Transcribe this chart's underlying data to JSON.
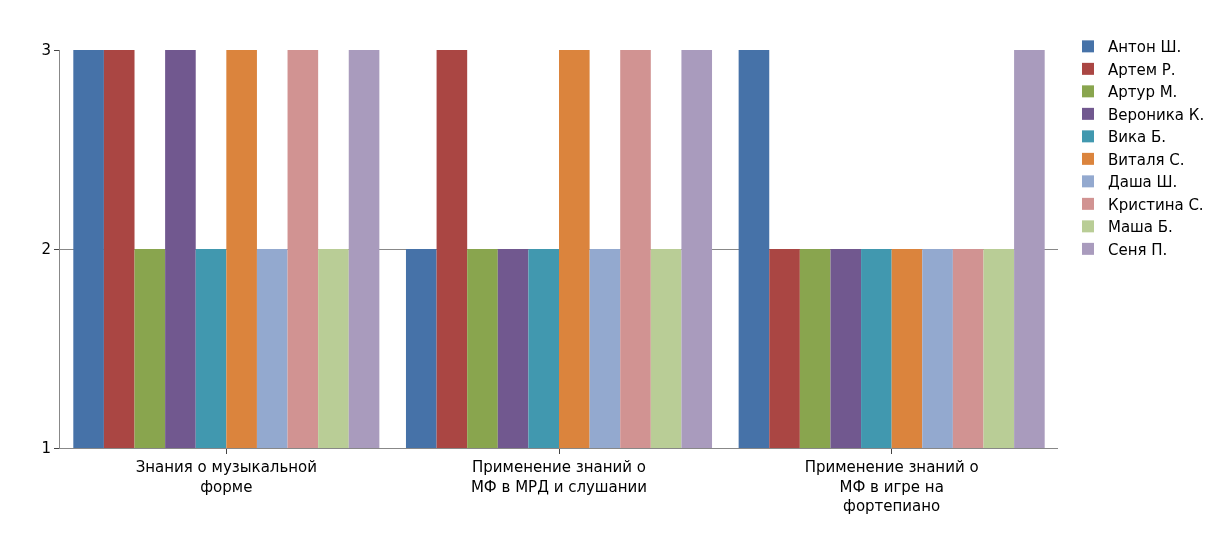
{
  "chart_data": {
    "type": "bar",
    "categories": [
      "Знания о музыкальной форме",
      "Применение знаний о МФ в МРД и слушании",
      "Применение знаний о МФ в игре на фортепиано"
    ],
    "series": [
      {
        "name": "Антон Ш.",
        "color": "#4672a8",
        "values": [
          3,
          2,
          3
        ]
      },
      {
        "name": "Артем Р.",
        "color": "#aa4643",
        "values": [
          3,
          3,
          2
        ]
      },
      {
        "name": "Артур М.",
        "color": "#89a54e",
        "values": [
          2,
          2,
          2
        ]
      },
      {
        "name": "Вероника К.",
        "color": "#71588f",
        "values": [
          3,
          2,
          2
        ]
      },
      {
        "name": "Вика Б.",
        "color": "#4198af",
        "values": [
          2,
          2,
          2
        ]
      },
      {
        "name": "Виталя С.",
        "color": "#db843d",
        "values": [
          3,
          3,
          2
        ]
      },
      {
        "name": "Даша Ш.",
        "color": "#93a9cf",
        "values": [
          2,
          2,
          2
        ]
      },
      {
        "name": "Кристина С.",
        "color": "#d19392",
        "values": [
          3,
          3,
          2
        ]
      },
      {
        "name": "Маша Б.",
        "color": "#b9cd96",
        "values": [
          2,
          2,
          2
        ]
      },
      {
        "name": "Сеня П.",
        "color": "#a99bbd",
        "values": [
          3,
          3,
          3
        ]
      }
    ],
    "ylim": [
      1,
      3
    ],
    "yticks": [
      1,
      2,
      3
    ],
    "grid": "y",
    "legend": "right"
  }
}
